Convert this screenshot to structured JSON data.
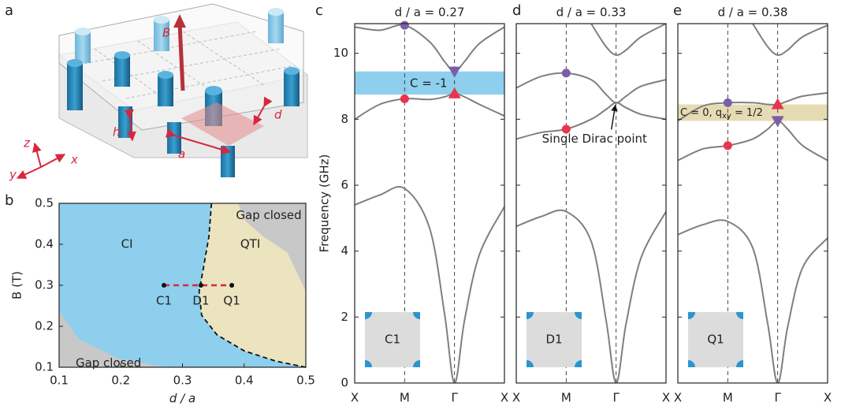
{
  "panel_labels": [
    "a",
    "b",
    "c",
    "d",
    "e"
  ],
  "schematic": {
    "field": "B",
    "d": "d",
    "h": "h",
    "a": "a",
    "axes": [
      "x",
      "y",
      "z"
    ]
  },
  "chart_data": [
    {
      "type": "phase",
      "xlabel": "d / a",
      "ylabel": "B (T)",
      "xlim": [
        0.1,
        0.5
      ],
      "ylim": [
        0.1,
        0.5
      ],
      "xticks": [
        0.1,
        0.2,
        0.3,
        0.4,
        0.5
      ],
      "yticks": [
        0.1,
        0.2,
        0.3,
        0.4,
        0.5
      ],
      "boundary": {
        "x": [
          0.347,
          0.343,
          0.334,
          0.327,
          0.331,
          0.356,
          0.4,
          0.451,
          0.5
        ],
        "y": [
          0.5,
          0.42,
          0.342,
          0.285,
          0.227,
          0.179,
          0.14,
          0.115,
          0.1
        ]
      },
      "regions": [
        {
          "label": "CI",
          "color": "#8ecfee",
          "side": "left"
        },
        {
          "label": "QTI",
          "color": "#ece3bf",
          "side": "right"
        },
        {
          "label": "Gap closed",
          "color": "#c8c8c8",
          "x": [
            0.39,
            0.4,
            0.43,
            0.47,
            0.5,
            0.5
          ],
          "y": [
            0.5,
            0.46,
            0.42,
            0.38,
            0.285,
            0.5
          ]
        },
        {
          "label": "Gap closed",
          "color": "#c8c8c8",
          "x": [
            0.1,
            0.132,
            0.196,
            0.273,
            0.1
          ],
          "y": [
            0.237,
            0.169,
            0.121,
            0.1,
            0.1
          ]
        }
      ],
      "points": [
        {
          "label": "C1",
          "x": 0.27,
          "y": 0.3
        },
        {
          "label": "D1",
          "x": 0.33,
          "y": 0.3
        },
        {
          "label": "Q1",
          "x": 0.38,
          "y": 0.3
        }
      ],
      "point_line_color": "#d9263c"
    },
    {
      "type": "line",
      "title": "d / a = 0.27",
      "ylabel": "Frequency (GHz)",
      "x": [
        0,
        0.5,
        1,
        1.5,
        1.8,
        2,
        2.2,
        2.5,
        3
      ],
      "xlim": [
        0,
        3
      ],
      "xticks": [
        {
          "value": 0,
          "label": "X"
        },
        {
          "value": 1,
          "label": "M"
        },
        {
          "value": 2,
          "label": "Γ"
        },
        {
          "value": 3,
          "label": "X"
        }
      ],
      "ylim": [
        0,
        10.9
      ],
      "yticks": [
        0,
        2,
        4,
        6,
        8,
        10
      ],
      "series": [
        {
          "color": "#7f7f7f",
          "values": [
            5.4,
            5.7,
            5.9,
            4.7,
            2.1,
            0,
            1.9,
            3.9,
            5.35
          ]
        },
        {
          "color": "#7f7f7f",
          "values": [
            8.0,
            8.45,
            8.62,
            8.6,
            8.68,
            8.78,
            8.68,
            8.45,
            8.1
          ]
        },
        {
          "color": "#7f7f7f",
          "values": [
            10.8,
            10.7,
            10.85,
            10.35,
            9.75,
            9.45,
            9.75,
            10.3,
            10.8
          ]
        }
      ],
      "markers": [
        {
          "x": 1,
          "y": 10.85,
          "shape": "circle",
          "color": "#7b5ea7"
        },
        {
          "x": 1,
          "y": 8.62,
          "shape": "circle",
          "color": "#e8344e"
        },
        {
          "x": 2,
          "y": 9.45,
          "shape": "triangle-down",
          "color": "#7b5ea7"
        },
        {
          "x": 2,
          "y": 8.78,
          "shape": "triangle-up",
          "color": "#e8344e"
        }
      ],
      "gap": {
        "range": [
          8.75,
          9.45
        ],
        "color": "#8ecfee",
        "label": [
          "C = -1"
        ]
      },
      "inset_label": "C1"
    },
    {
      "type": "line",
      "title": "d / a = 0.33",
      "x": [
        0,
        0.5,
        1,
        1.5,
        1.8,
        2,
        2.2,
        2.5,
        3
      ],
      "xlim": [
        0,
        3
      ],
      "xticks": [
        {
          "value": 0,
          "label": "X"
        },
        {
          "value": 1,
          "label": "M"
        },
        {
          "value": 2,
          "label": "Γ"
        },
        {
          "value": 3,
          "label": "X"
        }
      ],
      "ylim": [
        0,
        10.9
      ],
      "yticks": [
        0,
        2,
        4,
        6,
        8,
        10
      ],
      "series": [
        {
          "color": "#7f7f7f",
          "values": [
            4.75,
            5.05,
            5.2,
            4.3,
            1.9,
            0,
            1.8,
            3.8,
            5.2
          ]
        },
        {
          "color": "#7f7f7f",
          "values": [
            7.4,
            7.6,
            7.7,
            8.0,
            8.3,
            8.5,
            8.35,
            8.15,
            8.0
          ]
        },
        {
          "color": "#7f7f7f",
          "values": [
            8.95,
            9.3,
            9.4,
            9.2,
            8.75,
            8.5,
            8.7,
            9.0,
            9.2
          ]
        },
        {
          "color": "#7f7f7f",
          "values": [
            null,
            null,
            null,
            10.9,
            10.2,
            9.95,
            10.1,
            10.5,
            10.9
          ]
        }
      ],
      "markers": [
        {
          "x": 1,
          "y": 9.4,
          "shape": "circle",
          "color": "#7b5ea7"
        },
        {
          "x": 1,
          "y": 7.7,
          "shape": "circle",
          "color": "#e8344e"
        }
      ],
      "annotation": {
        "text": "Single Dirac point",
        "x": 2,
        "y": 8.5
      },
      "inset_label": "D1"
    },
    {
      "type": "line",
      "title": "d / a = 0.38",
      "x": [
        0,
        0.5,
        1,
        1.5,
        1.8,
        2,
        2.2,
        2.5,
        3
      ],
      "xlim": [
        0,
        3
      ],
      "xticks": [
        {
          "value": 0,
          "label": "X"
        },
        {
          "value": 1,
          "label": "M"
        },
        {
          "value": 2,
          "label": "Γ"
        },
        {
          "value": 3,
          "label": "X"
        }
      ],
      "ylim": [
        0,
        10.9
      ],
      "yticks": [
        0,
        2,
        4,
        6,
        8,
        10
      ],
      "series": [
        {
          "color": "#7f7f7f",
          "values": [
            4.5,
            4.8,
            4.9,
            4.1,
            1.8,
            0,
            1.7,
            3.5,
            4.4
          ]
        },
        {
          "color": "#7f7f7f",
          "values": [
            6.75,
            7.1,
            7.2,
            7.4,
            7.7,
            7.95,
            7.7,
            7.2,
            6.75
          ]
        },
        {
          "color": "#7f7f7f",
          "values": [
            7.95,
            8.4,
            8.5,
            8.5,
            8.45,
            8.45,
            8.55,
            8.7,
            8.8
          ]
        },
        {
          "color": "#7f7f7f",
          "values": [
            null,
            null,
            null,
            10.9,
            10.2,
            9.95,
            10.1,
            10.5,
            10.85
          ]
        }
      ],
      "markers": [
        {
          "x": 1,
          "y": 8.5,
          "shape": "circle",
          "color": "#7b5ea7"
        },
        {
          "x": 1,
          "y": 7.2,
          "shape": "circle",
          "color": "#e8344e"
        },
        {
          "x": 2,
          "y": 8.45,
          "shape": "triangle-up",
          "color": "#e8344e"
        },
        {
          "x": 2,
          "y": 7.95,
          "shape": "triangle-down",
          "color": "#7b5ea7"
        }
      ],
      "gap": {
        "range": [
          7.95,
          8.45
        ],
        "color": "#e6dcb4",
        "label": [
          "C = 0, q",
          "xy",
          " = 1/2"
        ]
      },
      "inset_label": "Q1"
    }
  ]
}
